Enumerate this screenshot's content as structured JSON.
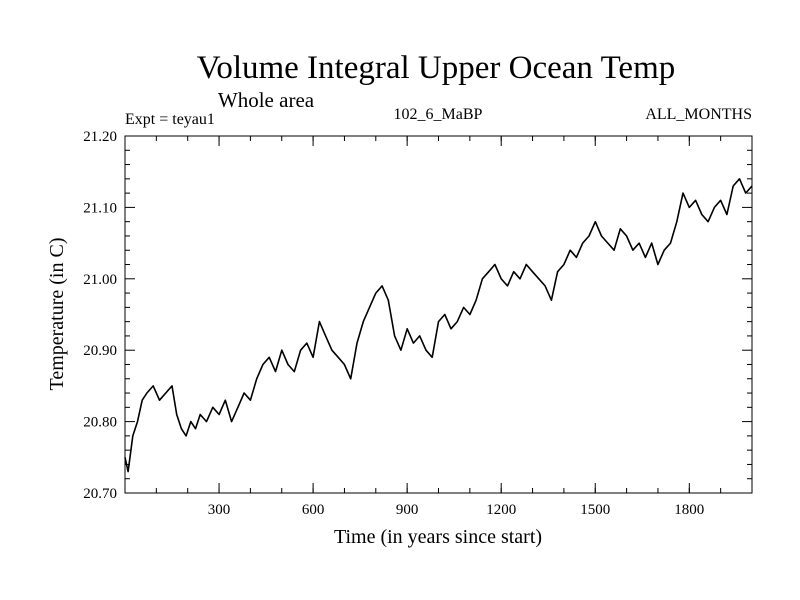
{
  "chart_data": {
    "type": "line",
    "title": "Volume Integral Upper Ocean Temp",
    "subtitle": "Whole area",
    "info_left": "Expt = teyau1",
    "info_center": "102_6_MaBP",
    "info_right": "ALL_MONTHS",
    "xlabel": "Time (in years since start)",
    "ylabel": "Temperature (in C)",
    "xlim": [
      0,
      2000
    ],
    "ylim": [
      20.7,
      21.2
    ],
    "xticks": [
      300,
      600,
      900,
      1200,
      1500,
      1800
    ],
    "xtick_labels": [
      "300",
      "600",
      "900",
      "1200",
      "1500",
      "1800"
    ],
    "yticks": [
      20.7,
      20.8,
      20.9,
      21.0,
      21.1,
      21.2
    ],
    "ytick_labels": [
      "20.70",
      "20.80",
      "20.90",
      "21.00",
      "21.10",
      "21.20"
    ],
    "grid": false,
    "legend": "none",
    "series": [
      {
        "name": "Temperature",
        "color": "#000000",
        "x": [
          0,
          10,
          25,
          40,
          55,
          70,
          90,
          110,
          130,
          150,
          165,
          180,
          195,
          210,
          225,
          240,
          260,
          280,
          300,
          320,
          340,
          360,
          380,
          400,
          420,
          440,
          460,
          480,
          500,
          520,
          540,
          560,
          580,
          600,
          620,
          640,
          660,
          680,
          700,
          720,
          740,
          760,
          780,
          800,
          820,
          840,
          860,
          880,
          900,
          920,
          940,
          960,
          980,
          1000,
          1020,
          1040,
          1060,
          1080,
          1100,
          1120,
          1140,
          1160,
          1180,
          1200,
          1220,
          1240,
          1260,
          1280,
          1300,
          1320,
          1340,
          1360,
          1380,
          1400,
          1420,
          1440,
          1460,
          1480,
          1500,
          1520,
          1540,
          1560,
          1580,
          1600,
          1620,
          1640,
          1660,
          1680,
          1700,
          1720,
          1740,
          1760,
          1780,
          1800,
          1820,
          1840,
          1860,
          1880,
          1900,
          1920,
          1940,
          1960,
          1980,
          2000
        ],
        "values": [
          20.75,
          20.73,
          20.78,
          20.8,
          20.83,
          20.84,
          20.85,
          20.83,
          20.84,
          20.85,
          20.81,
          20.79,
          20.78,
          20.8,
          20.79,
          20.81,
          20.8,
          20.82,
          20.81,
          20.83,
          20.8,
          20.82,
          20.84,
          20.83,
          20.86,
          20.88,
          20.89,
          20.87,
          20.9,
          20.88,
          20.87,
          20.9,
          20.91,
          20.89,
          20.94,
          20.92,
          20.9,
          20.89,
          20.88,
          20.86,
          20.91,
          20.94,
          20.96,
          20.98,
          20.99,
          20.97,
          20.92,
          20.9,
          20.93,
          20.91,
          20.92,
          20.9,
          20.89,
          20.94,
          20.95,
          20.93,
          20.94,
          20.96,
          20.95,
          20.97,
          21.0,
          21.01,
          21.02,
          21.0,
          20.99,
          21.01,
          21.0,
          21.02,
          21.01,
          21.0,
          20.99,
          20.97,
          21.01,
          21.02,
          21.04,
          21.03,
          21.05,
          21.06,
          21.08,
          21.06,
          21.05,
          21.04,
          21.07,
          21.06,
          21.04,
          21.05,
          21.03,
          21.05,
          21.02,
          21.04,
          21.05,
          21.08,
          21.12,
          21.1,
          21.11,
          21.09,
          21.08,
          21.1,
          21.11,
          21.09,
          21.13,
          21.14,
          21.12,
          21.13
        ]
      }
    ]
  }
}
